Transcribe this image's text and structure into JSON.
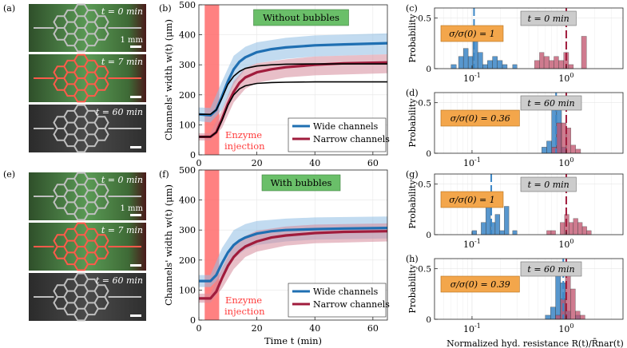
{
  "figure": {
    "panel_labels": [
      "(a)",
      "(b)",
      "(c)",
      "(d)",
      "(e)",
      "(f)",
      "(g)",
      "(h)"
    ],
    "micrographs": {
      "a": [
        {
          "time_label": "t = 0 min",
          "scale_label": "1 mm",
          "style": "green",
          "highlight": "none"
        },
        {
          "time_label": "t = 7 min",
          "scale_label": "",
          "style": "green",
          "highlight": "red"
        },
        {
          "time_label": "t = 60 min",
          "scale_label": "",
          "style": "gray",
          "highlight": "none"
        }
      ],
      "e": [
        {
          "time_label": "t = 0 min",
          "scale_label": "1 mm",
          "style": "green",
          "highlight": "none"
        },
        {
          "time_label": "t = 7 min",
          "scale_label": "",
          "style": "green",
          "highlight": "red"
        },
        {
          "time_label": "t = 60 min",
          "scale_label": "",
          "style": "gray",
          "highlight": "none"
        }
      ]
    },
    "enzyme_text": [
      "Enzyme",
      "injection"
    ]
  },
  "colors": {
    "wide": "#1f6fb2",
    "wide_band": "#8fbde3",
    "narrow": "#a01c3c",
    "narrow_band": "#d58a9a",
    "enzyme": "#ff6b6b",
    "green_label": "#6abf69",
    "orange_label": "#f3a64b",
    "gray_label": "#cccccc",
    "hist_blue": "#3b86c6",
    "hist_red": "#c0506a"
  },
  "chart_data": [
    {
      "id": "b",
      "type": "line",
      "title": "Without bubbles",
      "xlabel": "",
      "ylabel": "Channels' width w(t) (μm)",
      "xlim": [
        0,
        65
      ],
      "ylim": [
        0,
        500
      ],
      "xticks": [
        0,
        20,
        40,
        60
      ],
      "yticks": [
        0,
        100,
        200,
        300,
        400,
        500
      ],
      "enzyme_window": [
        2,
        7
      ],
      "legend": {
        "position": "bottom-right",
        "entries": [
          "Wide channels",
          "Narrow channels"
        ]
      },
      "series": [
        {
          "name": "Wide channels",
          "x": [
            0,
            4,
            6,
            8,
            10,
            12,
            14,
            16,
            20,
            25,
            30,
            40,
            50,
            65
          ],
          "values": [
            135,
            132,
            150,
            195,
            245,
            285,
            310,
            325,
            342,
            352,
            358,
            365,
            368,
            372
          ]
        },
        {
          "name": "Narrow channels",
          "x": [
            0,
            4,
            6,
            8,
            10,
            12,
            14,
            16,
            20,
            25,
            30,
            40,
            50,
            65
          ],
          "values": [
            60,
            60,
            75,
            120,
            170,
            210,
            240,
            258,
            275,
            285,
            292,
            300,
            305,
            308
          ]
        },
        {
          "name": "Model wide",
          "x": [
            0,
            4,
            6,
            8,
            10,
            12,
            14,
            16,
            20,
            25,
            30,
            40,
            65
          ],
          "values": [
            135,
            135,
            150,
            190,
            235,
            262,
            278,
            288,
            296,
            300,
            302,
            303,
            303
          ]
        },
        {
          "name": "Model narrow",
          "x": [
            0,
            4,
            6,
            8,
            10,
            12,
            14,
            16,
            20,
            25,
            30,
            40,
            65
          ],
          "values": [
            60,
            60,
            75,
            115,
            165,
            200,
            220,
            230,
            238,
            241,
            242,
            243,
            243
          ]
        }
      ],
      "bands": [
        {
          "name": "Wide channels",
          "x": [
            0,
            4,
            8,
            12,
            16,
            20,
            30,
            40,
            65
          ],
          "lower": [
            112,
            108,
            150,
            235,
            285,
            305,
            320,
            328,
            335
          ],
          "upper": [
            158,
            156,
            245,
            330,
            360,
            375,
            390,
            398,
            405
          ]
        },
        {
          "name": "Narrow channels",
          "x": [
            0,
            4,
            8,
            12,
            16,
            20,
            30,
            40,
            65
          ],
          "lower": [
            48,
            48,
            90,
            175,
            220,
            240,
            258,
            265,
            272
          ],
          "upper": [
            72,
            72,
            150,
            245,
            290,
            305,
            318,
            328,
            335
          ]
        }
      ]
    },
    {
      "id": "f",
      "type": "line",
      "title": "With bubbles",
      "xlabel": "Time t (min)",
      "ylabel": "Channels' width w(t) (μm)",
      "xlim": [
        0,
        65
      ],
      "ylim": [
        0,
        500
      ],
      "xticks": [
        0,
        20,
        40,
        60
      ],
      "yticks": [
        0,
        100,
        200,
        300,
        400,
        500
      ],
      "enzyme_window": [
        2,
        7
      ],
      "legend": {
        "position": "bottom-right",
        "entries": [
          "Wide channels",
          "Narrow channels"
        ]
      },
      "series": [
        {
          "name": "Wide channels",
          "x": [
            0,
            4,
            6,
            8,
            10,
            12,
            14,
            16,
            20,
            25,
            30,
            40,
            50,
            65
          ],
          "values": [
            130,
            130,
            150,
            190,
            225,
            250,
            265,
            275,
            288,
            296,
            300,
            303,
            305,
            307
          ]
        },
        {
          "name": "Narrow channels",
          "x": [
            0,
            4,
            6,
            8,
            10,
            12,
            14,
            16,
            20,
            25,
            30,
            40,
            50,
            65
          ],
          "values": [
            72,
            72,
            95,
            140,
            180,
            210,
            230,
            245,
            262,
            275,
            282,
            290,
            294,
            296
          ]
        }
      ],
      "bands": [
        {
          "name": "Wide channels",
          "x": [
            0,
            4,
            8,
            12,
            16,
            20,
            30,
            40,
            65
          ],
          "lower": [
            110,
            110,
            150,
            205,
            235,
            250,
            262,
            268,
            272
          ],
          "upper": [
            150,
            150,
            240,
            300,
            320,
            330,
            338,
            342,
            345
          ]
        },
        {
          "name": "Narrow channels",
          "x": [
            0,
            4,
            8,
            12,
            16,
            20,
            30,
            40,
            65
          ],
          "lower": [
            58,
            58,
            105,
            170,
            210,
            228,
            248,
            256,
            262
          ],
          "upper": [
            88,
            88,
            175,
            250,
            280,
            298,
            312,
            318,
            322
          ]
        }
      ]
    },
    {
      "id": "c",
      "type": "bar",
      "xscale": "log",
      "xlim": [
        0.04,
        4
      ],
      "ylim": [
        0,
        0.6
      ],
      "yticks": [
        0,
        0.5
      ],
      "xticks": [
        0.1,
        1
      ],
      "xticklabels": [
        "10^-1",
        "10^0"
      ],
      "ylabel": "Probability",
      "xlabel": "",
      "time_label": "t = 0 min",
      "sigma_label": "σ/σ(0) = 1",
      "mean_wide": 0.105,
      "mean_narrow": 1.0,
      "series": [
        {
          "name": "Wide channels",
          "color_key": "hist_blue",
          "bins": [
            [
              0.06,
              0.068,
              0.04
            ],
            [
              0.072,
              0.081,
              0.12
            ],
            [
              0.081,
              0.091,
              0.2
            ],
            [
              0.091,
              0.102,
              0.12
            ],
            [
              0.102,
              0.115,
              0.28
            ],
            [
              0.115,
              0.13,
              0.16
            ],
            [
              0.13,
              0.146,
              0.04
            ],
            [
              0.146,
              0.165,
              0.08
            ],
            [
              0.165,
              0.186,
              0.12
            ],
            [
              0.186,
              0.21,
              0.08
            ],
            [
              0.21,
              0.236,
              0.04
            ],
            [
              0.27,
              0.3,
              0.04
            ]
          ]
        },
        {
          "name": "Narrow channels",
          "color_key": "hist_red",
          "bins": [
            [
              0.46,
              0.52,
              0.08
            ],
            [
              0.52,
              0.58,
              0.16
            ],
            [
              0.58,
              0.66,
              0.12
            ],
            [
              0.66,
              0.74,
              0.08
            ],
            [
              0.74,
              0.83,
              0.12
            ],
            [
              0.83,
              0.94,
              0.08
            ],
            [
              0.94,
              1.06,
              0.16
            ],
            [
              1.06,
              1.19,
              0.04
            ],
            [
              1.45,
              1.64,
              0.32
            ]
          ]
        }
      ]
    },
    {
      "id": "d",
      "type": "bar",
      "xscale": "log",
      "xlim": [
        0.04,
        4
      ],
      "ylim": [
        0,
        0.6
      ],
      "yticks": [
        0,
        0.5
      ],
      "xticks": [
        0.1,
        1
      ],
      "xticklabels": [
        "10^-1",
        "10^0"
      ],
      "ylabel": "Probability",
      "xlabel": "",
      "time_label": "t = 60 min",
      "sigma_label": "σ/σ(0) = 0.36",
      "mean_wide": 0.78,
      "mean_narrow": 1.0,
      "series": [
        {
          "name": "Wide channels",
          "color_key": "hist_blue",
          "bins": [
            [
              0.55,
              0.62,
              0.06
            ],
            [
              0.62,
              0.7,
              0.12
            ],
            [
              0.7,
              0.79,
              0.55
            ],
            [
              0.79,
              0.89,
              0.5
            ],
            [
              0.89,
              1.0,
              0.06
            ]
          ]
        },
        {
          "name": "Narrow channels",
          "color_key": "hist_red",
          "bins": [
            [
              0.7,
              0.79,
              0.06
            ],
            [
              0.79,
              0.89,
              0.3
            ],
            [
              0.89,
              1.0,
              0.3
            ],
            [
              1.0,
              1.12,
              0.25
            ],
            [
              1.12,
              1.26,
              0.08
            ],
            [
              1.26,
              1.42,
              0.04
            ]
          ]
        }
      ]
    },
    {
      "id": "g",
      "type": "bar",
      "xscale": "log",
      "xlim": [
        0.04,
        4
      ],
      "ylim": [
        0,
        0.6
      ],
      "yticks": [
        0,
        0.5
      ],
      "xticks": [
        0.1,
        1
      ],
      "xticklabels": [
        "10^-1",
        "10^0"
      ],
      "ylabel": "Probability",
      "xlabel": "",
      "time_label": "t = 0 min",
      "sigma_label": "σ/σ(0) = 1",
      "mean_wide": 0.16,
      "mean_narrow": 1.0,
      "series": [
        {
          "name": "Wide channels",
          "color_key": "hist_blue",
          "bins": [
            [
              0.1,
              0.112,
              0.04
            ],
            [
              0.125,
              0.14,
              0.12
            ],
            [
              0.14,
              0.157,
              0.32
            ],
            [
              0.157,
              0.176,
              0.12
            ],
            [
              0.176,
              0.197,
              0.2
            ],
            [
              0.197,
              0.22,
              0.04
            ],
            [
              0.22,
              0.246,
              0.28
            ],
            [
              0.27,
              0.3,
              0.04
            ]
          ]
        },
        {
          "name": "Narrow channels",
          "color_key": "hist_red",
          "bins": [
            [
              0.62,
              0.69,
              0.04
            ],
            [
              0.69,
              0.77,
              0.04
            ],
            [
              0.86,
              0.96,
              0.12
            ],
            [
              0.96,
              1.07,
              0.2
            ],
            [
              1.07,
              1.19,
              0.12
            ],
            [
              1.19,
              1.33,
              0.16
            ],
            [
              1.33,
              1.48,
              0.12
            ],
            [
              1.48,
              1.65,
              0.08
            ],
            [
              1.65,
              1.84,
              0.04
            ]
          ]
        }
      ]
    },
    {
      "id": "h",
      "type": "bar",
      "xscale": "log",
      "xlim": [
        0.04,
        4
      ],
      "ylim": [
        0,
        0.6
      ],
      "yticks": [
        0,
        0.5
      ],
      "xticks": [
        0.1,
        1
      ],
      "xticklabels": [
        "10^-1",
        "10^0"
      ],
      "ylabel": "Probability",
      "xlabel": "Normalized hyd. resistance R(t)/R̄nar(t)",
      "time_label": "t = 60 min",
      "sigma_label": "σ/σ(0) = 0.39",
      "mean_wide": 0.93,
      "mean_narrow": 1.0,
      "series": [
        {
          "name": "Wide channels",
          "color_key": "hist_blue",
          "bins": [
            [
              0.6,
              0.68,
              0.04
            ],
            [
              0.68,
              0.77,
              0.12
            ],
            [
              0.77,
              0.87,
              0.44
            ],
            [
              0.87,
              0.98,
              0.36
            ],
            [
              0.98,
              1.11,
              0.08
            ],
            [
              1.25,
              1.4,
              0.04
            ]
          ]
        },
        {
          "name": "Narrow channels",
          "color_key": "hist_red",
          "bins": [
            [
              0.77,
              0.87,
              0.04
            ],
            [
              0.87,
              0.98,
              0.2
            ],
            [
              0.98,
              1.11,
              0.5
            ],
            [
              1.11,
              1.25,
              0.3
            ],
            [
              1.25,
              1.4,
              0.08
            ],
            [
              1.4,
              1.58,
              0.04
            ]
          ]
        }
      ]
    }
  ]
}
